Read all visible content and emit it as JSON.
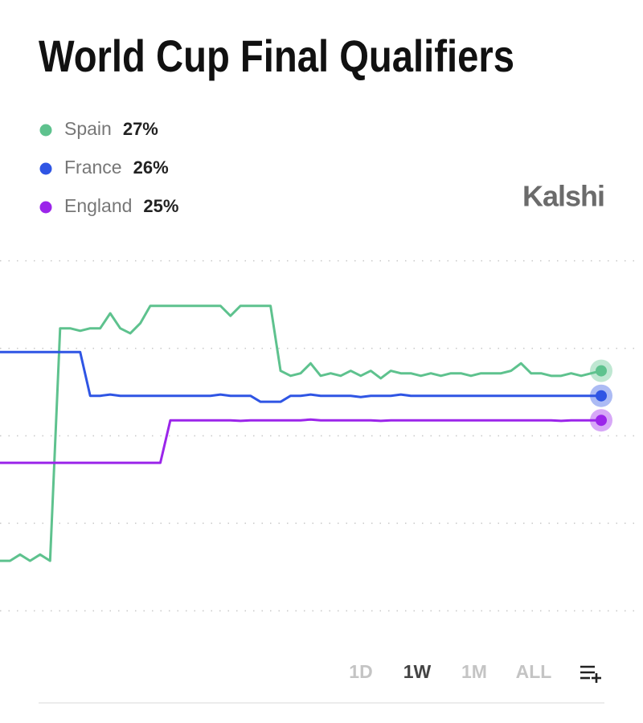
{
  "chart_data": {
    "type": "line",
    "title": "World Cup Final Qualifiers",
    "brand": "Kalshi",
    "ranges": [
      "1D",
      "1W",
      "1M",
      "ALL"
    ],
    "ylim": [
      16,
      33
    ],
    "yticks": [
      17.5,
      21,
      24.5,
      28,
      31.5
    ],
    "grid": true,
    "series": [
      {
        "name": "Spain",
        "color": "#5ec28e",
        "value": 27,
        "value_label": "27%",
        "values": [
          19.5,
          19.5,
          19.75,
          19.5,
          19.75,
          19.5,
          28.8,
          28.8,
          28.7,
          28.8,
          28.8,
          29.4,
          28.8,
          28.6,
          29.0,
          29.7,
          29.7,
          29.7,
          29.7,
          29.7,
          29.7,
          29.7,
          29.7,
          29.3,
          29.7,
          29.7,
          29.7,
          29.7,
          27.1,
          26.9,
          27.0,
          27.4,
          26.9,
          27.0,
          26.9,
          27.1,
          26.9,
          27.1,
          26.8,
          27.1,
          27.0,
          27.0,
          26.9,
          27.0,
          26.9,
          27.0,
          27.0,
          26.9,
          27.0,
          27.0,
          27.0,
          27.1,
          27.4,
          27.0,
          27.0,
          26.9,
          26.9,
          27.0,
          26.9,
          27.0,
          27.1
        ]
      },
      {
        "name": "France",
        "color": "#2f55e4",
        "value": 26,
        "value_label": "26%",
        "values": [
          27.85,
          27.85,
          27.85,
          27.85,
          27.85,
          27.85,
          27.85,
          27.85,
          27.85,
          26.1,
          26.1,
          26.15,
          26.1,
          26.1,
          26.1,
          26.1,
          26.1,
          26.1,
          26.1,
          26.1,
          26.1,
          26.1,
          26.15,
          26.1,
          26.1,
          26.1,
          25.86,
          25.86,
          25.86,
          26.1,
          26.1,
          26.15,
          26.1,
          26.1,
          26.1,
          26.1,
          26.05,
          26.1,
          26.1,
          26.1,
          26.15,
          26.1,
          26.1,
          26.1,
          26.1,
          26.1,
          26.1,
          26.1,
          26.1,
          26.1,
          26.1,
          26.1,
          26.1,
          26.1,
          26.1,
          26.1,
          26.1,
          26.1,
          26.1,
          26.1,
          26.1
        ]
      },
      {
        "name": "England",
        "color": "#9b25ea",
        "value": 25,
        "value_label": "25%",
        "values": [
          23.42,
          23.42,
          23.42,
          23.42,
          23.42,
          23.42,
          23.42,
          23.42,
          23.42,
          23.42,
          23.42,
          23.42,
          23.42,
          23.42,
          23.42,
          23.42,
          23.42,
          25.12,
          25.12,
          25.12,
          25.12,
          25.12,
          25.12,
          25.12,
          25.1,
          25.12,
          25.12,
          25.12,
          25.12,
          25.12,
          25.12,
          25.15,
          25.12,
          25.12,
          25.12,
          25.12,
          25.12,
          25.12,
          25.1,
          25.12,
          25.12,
          25.12,
          25.12,
          25.12,
          25.12,
          25.12,
          25.12,
          25.12,
          25.12,
          25.12,
          25.12,
          25.12,
          25.12,
          25.12,
          25.12,
          25.12,
          25.1,
          25.12,
          25.12,
          25.12,
          25.12
        ]
      }
    ]
  }
}
